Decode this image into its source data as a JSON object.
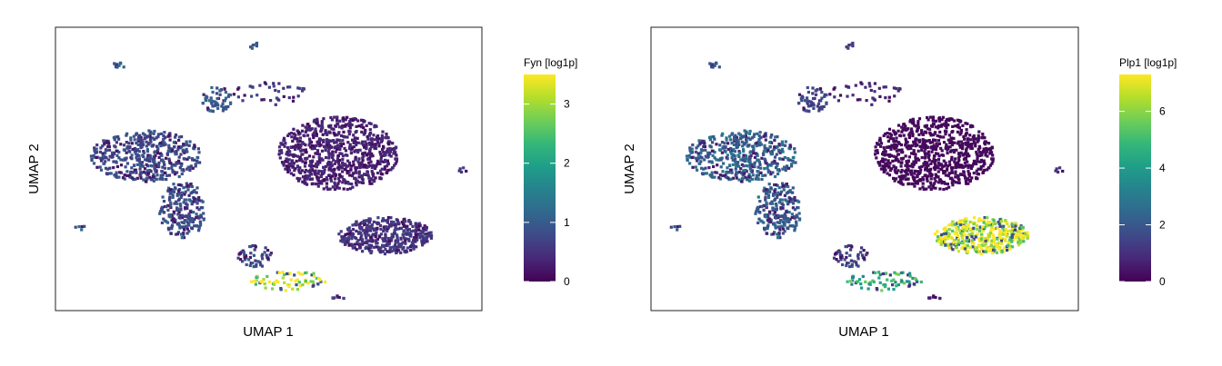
{
  "colors": {
    "frame": "#222222",
    "viridis": [
      "#440154",
      "#482878",
      "#3e4a89",
      "#31688e",
      "#26828e",
      "#1f9e89",
      "#35b779",
      "#6ece58",
      "#b5de2b",
      "#fde725"
    ]
  },
  "chart_data": [
    {
      "type": "scatter",
      "title": "",
      "xlabel": "UMAP 1",
      "ylabel": "UMAP 2",
      "legend_title": "Fyn [log1p]",
      "colorbar": {
        "min": 0,
        "max": 3.5,
        "ticks": [
          0,
          1,
          2,
          3
        ]
      },
      "legend_position": "right",
      "grid": false,
      "clusters": [
        {
          "name": "c_top_tiny",
          "cx": 0.46,
          "cy": 0.06,
          "rx": 0.01,
          "ry": 0.02,
          "n": 6,
          "value": 0.9
        },
        {
          "name": "c_topleft_small",
          "cx": 0.145,
          "cy": 0.13,
          "rx": 0.015,
          "ry": 0.01,
          "n": 10,
          "value": 1.1
        },
        {
          "name": "c_upper_mid",
          "cx": 0.375,
          "cy": 0.25,
          "rx": 0.035,
          "ry": 0.045,
          "n": 60,
          "value": 1.0
        },
        {
          "name": "c_upper_mid_trail",
          "cx": 0.5,
          "cy": 0.23,
          "rx": 0.09,
          "ry": 0.04,
          "n": 40,
          "value": 0.6
        },
        {
          "name": "c_left_big",
          "cx": 0.21,
          "cy": 0.45,
          "rx": 0.13,
          "ry": 0.09,
          "n": 450,
          "value": 0.8
        },
        {
          "name": "c_right_big",
          "cx": 0.66,
          "cy": 0.44,
          "rx": 0.14,
          "ry": 0.13,
          "n": 800,
          "value": 0.35
        },
        {
          "name": "c_left_lower",
          "cx": 0.295,
          "cy": 0.64,
          "rx": 0.055,
          "ry": 0.1,
          "n": 220,
          "value": 0.9
        },
        {
          "name": "c_far_left",
          "cx": 0.055,
          "cy": 0.7,
          "rx": 0.012,
          "ry": 0.01,
          "n": 5,
          "value": 1.0
        },
        {
          "name": "c_far_right",
          "cx": 0.95,
          "cy": 0.5,
          "rx": 0.013,
          "ry": 0.01,
          "n": 5,
          "value": 0.6
        },
        {
          "name": "c_right_lower",
          "cx": 0.77,
          "cy": 0.73,
          "rx": 0.11,
          "ry": 0.065,
          "n": 420,
          "value": 0.55
        },
        {
          "name": "c_bottom_small",
          "cx": 0.465,
          "cy": 0.805,
          "rx": 0.04,
          "ry": 0.04,
          "n": 50,
          "value": 0.8
        },
        {
          "name": "c_bottom_arc",
          "cx": 0.545,
          "cy": 0.89,
          "rx": 0.09,
          "ry": 0.035,
          "n": 70,
          "value": 3.3
        },
        {
          "name": "c_bottom_tiny",
          "cx": 0.66,
          "cy": 0.95,
          "rx": 0.015,
          "ry": 0.01,
          "n": 8,
          "value": 1.0
        }
      ]
    },
    {
      "type": "scatter",
      "title": "",
      "xlabel": "UMAP 1",
      "ylabel": "UMAP 2",
      "legend_title": "Plp1 [log1p]",
      "colorbar": {
        "min": 0,
        "max": 7.3,
        "ticks": [
          0,
          2,
          4,
          6
        ]
      },
      "legend_position": "right",
      "grid": false,
      "clusters": [
        {
          "name": "c_top_tiny",
          "cx": 0.46,
          "cy": 0.06,
          "rx": 0.01,
          "ry": 0.02,
          "n": 6,
          "value": 1.2
        },
        {
          "name": "c_topleft_small",
          "cx": 0.145,
          "cy": 0.13,
          "rx": 0.015,
          "ry": 0.01,
          "n": 10,
          "value": 2.0
        },
        {
          "name": "c_upper_mid",
          "cx": 0.375,
          "cy": 0.25,
          "rx": 0.035,
          "ry": 0.045,
          "n": 60,
          "value": 1.5
        },
        {
          "name": "c_upper_mid_trail",
          "cx": 0.5,
          "cy": 0.23,
          "rx": 0.09,
          "ry": 0.04,
          "n": 40,
          "value": 0.8
        },
        {
          "name": "c_left_big",
          "cx": 0.21,
          "cy": 0.45,
          "rx": 0.13,
          "ry": 0.09,
          "n": 450,
          "value": 2.3
        },
        {
          "name": "c_right_big",
          "cx": 0.66,
          "cy": 0.44,
          "rx": 0.14,
          "ry": 0.13,
          "n": 800,
          "value": 0.2
        },
        {
          "name": "c_left_lower",
          "cx": 0.295,
          "cy": 0.64,
          "rx": 0.055,
          "ry": 0.1,
          "n": 220,
          "value": 2.2
        },
        {
          "name": "c_far_left",
          "cx": 0.055,
          "cy": 0.7,
          "rx": 0.012,
          "ry": 0.01,
          "n": 5,
          "value": 1.8
        },
        {
          "name": "c_far_right",
          "cx": 0.95,
          "cy": 0.5,
          "rx": 0.013,
          "ry": 0.01,
          "n": 5,
          "value": 1.0
        },
        {
          "name": "c_right_lower",
          "cx": 0.77,
          "cy": 0.73,
          "rx": 0.11,
          "ry": 0.065,
          "n": 420,
          "value": 7.0
        },
        {
          "name": "c_bottom_small",
          "cx": 0.465,
          "cy": 0.805,
          "rx": 0.04,
          "ry": 0.04,
          "n": 50,
          "value": 1.5
        },
        {
          "name": "c_bottom_arc",
          "cx": 0.545,
          "cy": 0.89,
          "rx": 0.09,
          "ry": 0.035,
          "n": 70,
          "value": 4.5
        },
        {
          "name": "c_bottom_tiny",
          "cx": 0.66,
          "cy": 0.95,
          "rx": 0.015,
          "ry": 0.01,
          "n": 8,
          "value": 1.0
        }
      ]
    }
  ]
}
